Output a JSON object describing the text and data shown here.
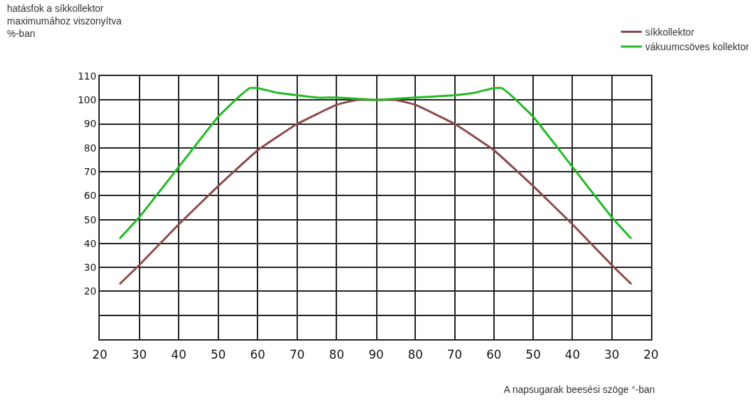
{
  "chart_data": [
    {
      "type": "line",
      "ylabel": "hatásfok a síkkollektor\nmaximumához viszonyítva\n%-ban",
      "series": [
        {
          "color": "#8b4a4a",
          "x": [
            25,
            30,
            40,
            50,
            60,
            70,
            80,
            85,
            90
          ],
          "values": [
            23,
            31,
            48,
            64,
            79,
            90,
            98,
            100,
            100
          ]
        },
        {
          "color": "#22bb22",
          "x": [
            25,
            30,
            40,
            50,
            55,
            58,
            60,
            65,
            70,
            75,
            80,
            90
          ],
          "values": [
            42,
            51,
            72,
            93,
            101,
            105,
            105,
            103,
            102,
            101,
            101,
            100
          ]
        }
      ],
      "xlim": [
        20,
        90
      ],
      "xticks": [
        20,
        30,
        40,
        50,
        60,
        70,
        80,
        90
      ],
      "ylim": [
        0,
        110
      ],
      "yticks": [
        {
          "value": 0,
          "label": null
        },
        {
          "value": 10,
          "label": null
        },
        20,
        30,
        40,
        50,
        60,
        70,
        80,
        90,
        100,
        110
      ],
      "grid": true,
      "marker": "none",
      "line_style": "solid"
    },
    {
      "type": "line",
      "xlabel": "A napsugarak beesési szöge °-ban",
      "series": [
        {
          "name": "síkkollektor",
          "color": "#8b4a4a",
          "x": [
            90,
            85,
            80,
            70,
            60,
            50,
            40,
            30,
            25
          ],
          "values": [
            100,
            100,
            98,
            90,
            79,
            64,
            48,
            31,
            23
          ]
        },
        {
          "name": "vákuumcsöves kollektor",
          "color": "#22bb22",
          "x": [
            90,
            80,
            70,
            65,
            60,
            58,
            55,
            50,
            40,
            30,
            25
          ],
          "values": [
            100,
            101,
            102,
            103,
            105,
            105,
            101,
            93,
            72,
            51,
            42
          ]
        }
      ],
      "xlim": [
        90,
        20
      ],
      "xticks": [
        {
          "value": 90,
          "label": null
        },
        80,
        70,
        60,
        50,
        40,
        30,
        20
      ],
      "ylim": [
        0,
        110
      ],
      "yticks": [
        0,
        10,
        20,
        30,
        40,
        50,
        60,
        70,
        80,
        90,
        100,
        110
      ],
      "tick_labels": "x",
      "grid": true,
      "legend": "top right",
      "marker": "none",
      "line_style": "solid"
    }
  ]
}
